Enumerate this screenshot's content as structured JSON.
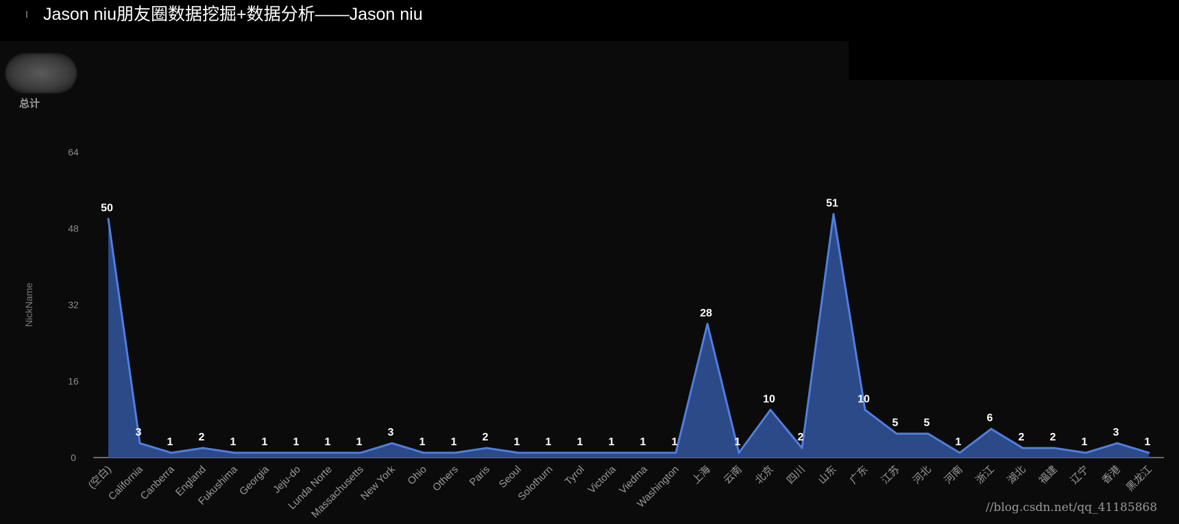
{
  "header": {
    "title": "Jason niu朋友圈数据挖掘+数据分析——Jason niu"
  },
  "legend": {
    "total_label": "总计"
  },
  "watermark": "//blog.csdn.net/qq_41185868",
  "colors": {
    "line": "#4f7fe0",
    "area": "#2e4d8f",
    "axis": "#8a8a8a",
    "background": "#0b0b0b"
  },
  "chart_data": {
    "type": "area",
    "title": "",
    "ylabel": "NickName",
    "xlabel": "",
    "ylim": [
      0,
      64
    ],
    "yticks": [
      0,
      16,
      32,
      48,
      64
    ],
    "grid": false,
    "categories": [
      "(空白)",
      "California",
      "Canberra",
      "England",
      "Fukushima",
      "Georgia",
      "Jeju-do",
      "Lunda Norte",
      "Massachusetts",
      "New York",
      "Ohio",
      "Others",
      "Paris",
      "Seoul",
      "Solothurn",
      "Tyrol",
      "Victoria",
      "Viedma",
      "Washington",
      "上海",
      "云南",
      "北京",
      "四川",
      "山东",
      "广东",
      "江苏",
      "河北",
      "河南",
      "浙江",
      "湖北",
      "福建",
      "辽宁",
      "香港",
      "黑龙江"
    ],
    "series": [
      {
        "values": [
          50,
          3,
          1,
          2,
          1,
          1,
          1,
          1,
          1,
          3,
          1,
          1,
          2,
          1,
          1,
          1,
          1,
          1,
          1,
          28,
          1,
          10,
          2,
          51,
          10,
          5,
          5,
          1,
          6,
          2,
          2,
          1,
          3,
          1
        ]
      }
    ]
  }
}
